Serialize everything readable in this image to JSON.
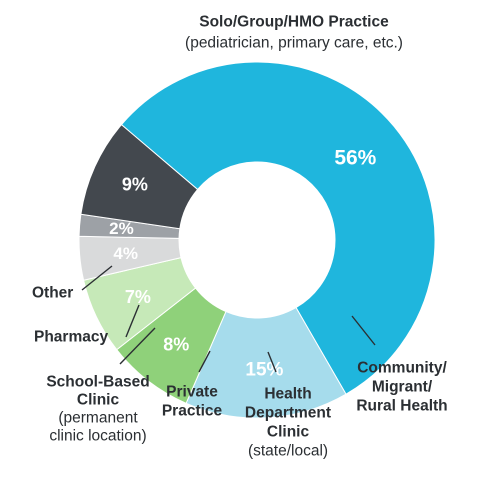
{
  "chart_data": {
    "type": "pie",
    "donut": true,
    "slices": [
      {
        "key": "solo",
        "value": 56,
        "label": "56%",
        "color": "#1fb6dd",
        "name_lines": [
          "Solo/Group/HMO Practice"
        ],
        "sub_lines": [
          "(pediatrician, primary care, etc.)"
        ]
      },
      {
        "key": "community",
        "value": 15,
        "label": "15%",
        "color": "#a6dcec",
        "name_lines": [
          "Community/",
          "Migrant/",
          "Rural Health"
        ],
        "sub_lines": []
      },
      {
        "key": "health",
        "value": 8,
        "label": "8%",
        "color": "#8fd17a",
        "name_lines": [
          "Health",
          "Department",
          "Clinic"
        ],
        "sub_lines": [
          "(state/local)"
        ]
      },
      {
        "key": "private",
        "value": 7,
        "label": "7%",
        "color": "#c6e9b8",
        "name_lines": [
          "Private",
          "Practice"
        ],
        "sub_lines": []
      },
      {
        "key": "school",
        "value": 4,
        "label": "4%",
        "color": "#d9dadb",
        "name_lines": [
          "School-Based",
          "Clinic"
        ],
        "sub_lines": [
          "(permanent",
          "clinic location)"
        ]
      },
      {
        "key": "pharmacy",
        "value": 2,
        "label": "2%",
        "color": "#9da1a6",
        "name_lines": [
          "Pharmacy"
        ],
        "sub_lines": []
      },
      {
        "key": "other",
        "value": 9,
        "label": "9%",
        "color": "#43484e",
        "name_lines": [
          "Other"
        ],
        "sub_lines": []
      }
    ]
  }
}
